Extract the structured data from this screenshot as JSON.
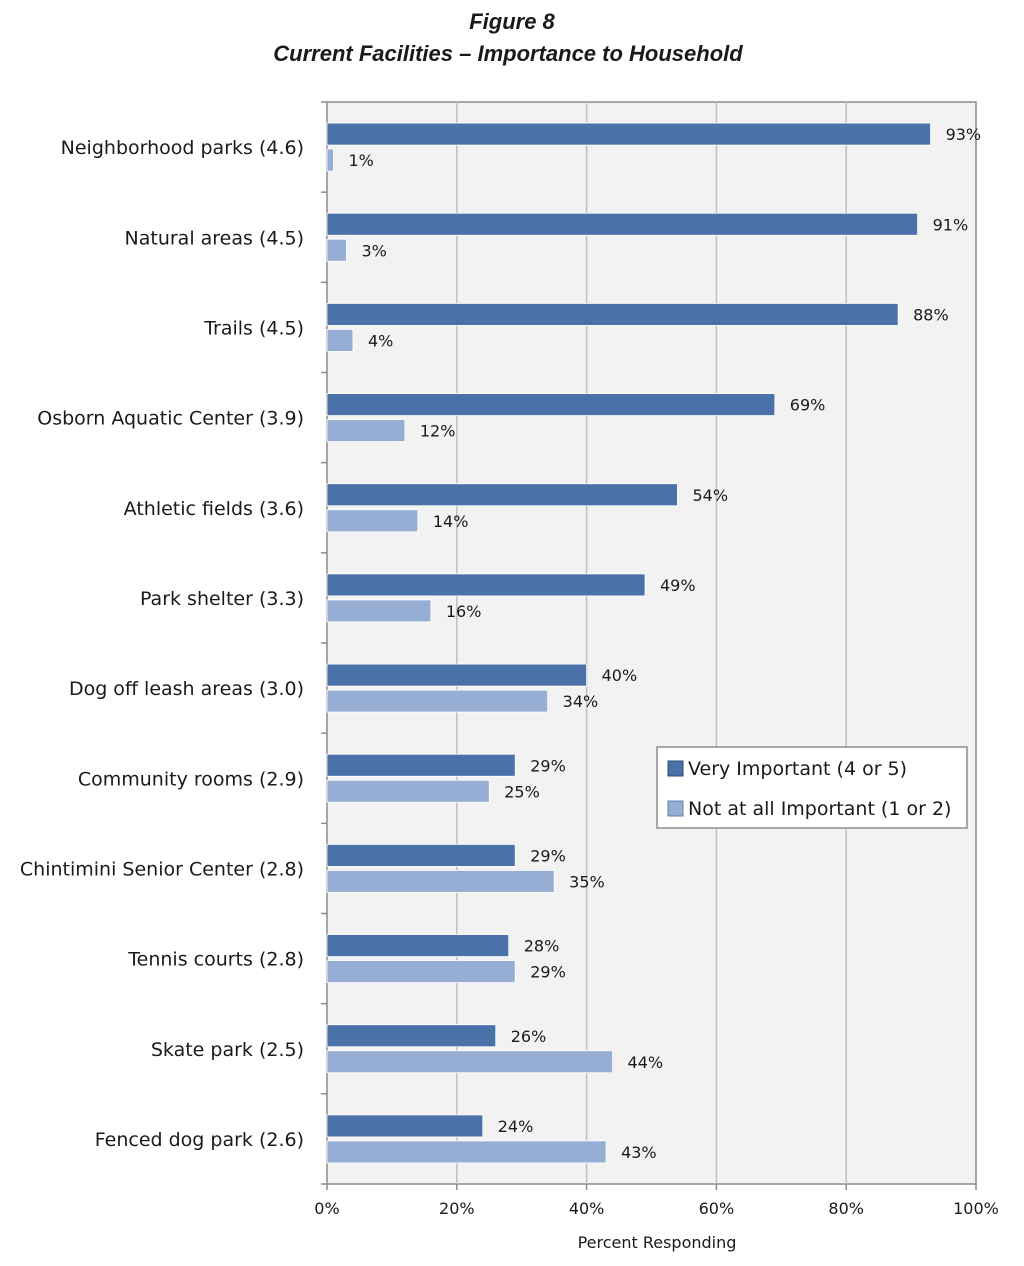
{
  "chart_data": {
    "type": "bar",
    "orientation": "horizontal",
    "title": "Figure 8",
    "subtitle": "Current Facilities – Importance to Household",
    "categories": [
      "Neighborhood parks (4.6)",
      "Natural areas (4.5)",
      "Trails (4.5)",
      "Osborn Aquatic Center (3.9)",
      "Athletic fields (3.6)",
      "Park shelter (3.3)",
      "Dog off leash areas (3.0)",
      "Community rooms (2.9)",
      "Chintimini Senior Center (2.8)",
      "Tennis courts (2.8)",
      "Skate park (2.5)",
      "Fenced dog park (2.6)"
    ],
    "series": [
      {
        "name": "Very Important (4 or 5)",
        "color": "#4a72a8",
        "values": [
          93,
          91,
          88,
          69,
          54,
          49,
          40,
          29,
          29,
          28,
          26,
          24
        ],
        "labels": [
          "93%",
          "91%",
          "88%",
          "69%",
          "54%",
          "49%",
          "40%",
          "29%",
          "29%",
          "28%",
          "26%",
          "24%"
        ]
      },
      {
        "name": "Not at all Important (1 or 2)",
        "color": "#97aed4",
        "values": [
          1,
          3,
          4,
          12,
          14,
          16,
          34,
          25,
          35,
          29,
          44,
          43
        ],
        "labels": [
          "1%",
          "3%",
          "4%",
          "12%",
          "14%",
          "16%",
          "34%",
          "25%",
          "35%",
          "29%",
          "44%",
          "43%"
        ]
      }
    ],
    "xlim": [
      0,
      100
    ],
    "xticks": [
      0,
      20,
      40,
      60,
      80,
      100
    ],
    "xtick_labels": [
      "0%",
      "20%",
      "40%",
      "60%",
      "80%",
      "100%"
    ],
    "xlabel": "Percent Responding",
    "ylabel": "",
    "grid": true,
    "legend_position": "right-middle"
  }
}
